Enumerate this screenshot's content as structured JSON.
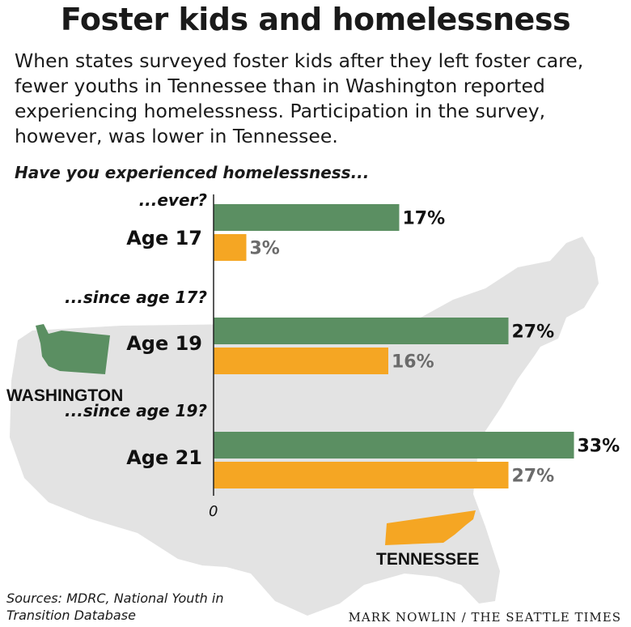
{
  "title": "Foster kids and homelessness",
  "subtitle": "When states surveyed foster kids after they left foster care, fewer youths in Tennessee than in Washington reported experiencing homelessness. Participation in the survey, however, was lower in Tennessee.",
  "question": "Have you experienced homelessness...",
  "source": "Sources: MDRC, National Youth in Transition Database",
  "credit": "MARK NOWLIN / THE SEATTLE TIMES",
  "map_labels": {
    "washington": "WASHINGTON",
    "tennessee": "TENNESSEE"
  },
  "colors": {
    "washington": "#5b8f62",
    "tennessee": "#f5a623",
    "map": "#e3e3e3",
    "axis": "#222222",
    "tn_label": "#6b6b6b"
  },
  "chart_data": {
    "type": "bar",
    "orientation": "horizontal",
    "unit": "%",
    "categories": [
      "Age 17",
      "Age 19",
      "Age 21"
    ],
    "sub_questions": [
      "...ever?",
      "...since age 17?",
      "...since age 19?"
    ],
    "series": [
      {
        "name": "WASHINGTON",
        "values": [
          17,
          27,
          33
        ],
        "labels": [
          "17%",
          "27%",
          "33%"
        ]
      },
      {
        "name": "TENNESSEE",
        "values": [
          3,
          16,
          27
        ],
        "labels": [
          "3%",
          "16%",
          "27%"
        ]
      }
    ],
    "x_ticks": [
      "0"
    ],
    "xlim": [
      0,
      33
    ],
    "grid": false,
    "legend": "map-labels"
  }
}
